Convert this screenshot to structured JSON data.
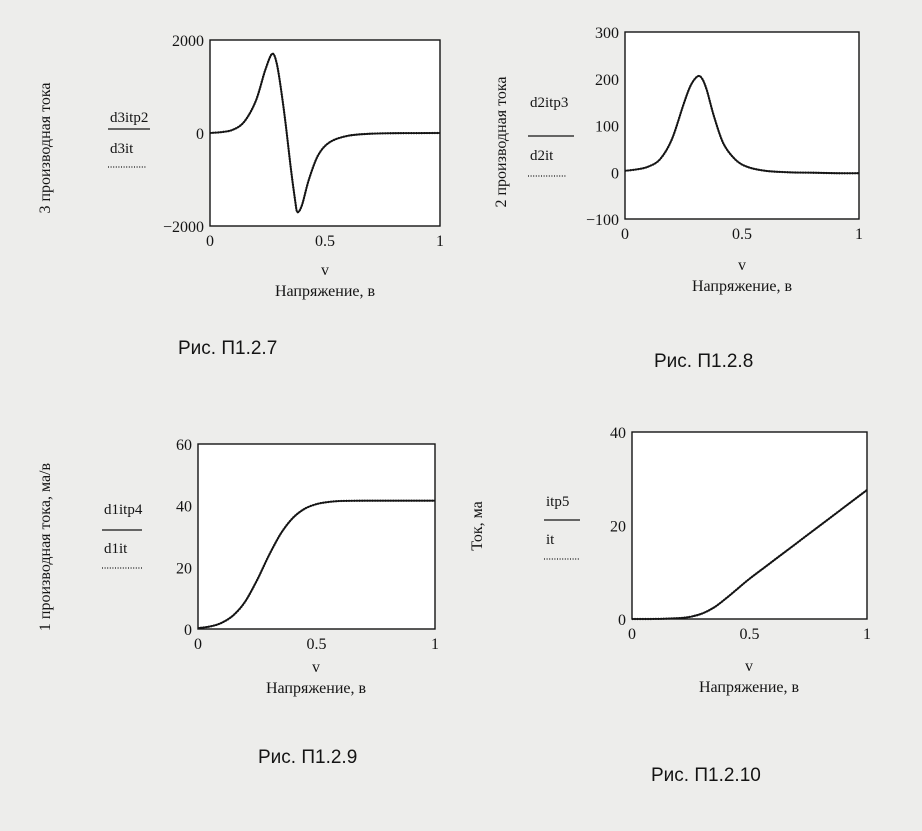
{
  "chart_data": [
    {
      "type": "line",
      "ylabel": "3 производная тока",
      "xlabel": "Напряжение, в",
      "xvar": "v",
      "xlim": [
        0,
        1
      ],
      "ylim": [
        -2000,
        2000
      ],
      "xticks": [
        "0",
        "0.5",
        "1"
      ],
      "yticks": [
        "2000",
        "0",
        "−2000"
      ],
      "yticks_values": [
        2000,
        0,
        -2000
      ],
      "xticks_values": [
        0,
        0.5,
        1
      ],
      "series": [
        {
          "name": "d3itp2",
          "style": "solid",
          "x": [
            0,
            0.05,
            0.1,
            0.15,
            0.2,
            0.24,
            0.27,
            0.29,
            0.31,
            0.33,
            0.35,
            0.37,
            0.38,
            0.4,
            0.43,
            0.47,
            0.52,
            0.6,
            0.7,
            0.8,
            0.9,
            1.0
          ],
          "y": [
            0,
            20,
            70,
            250,
            700,
            1350,
            1700,
            1500,
            900,
            150,
            -700,
            -1450,
            -1700,
            -1550,
            -1000,
            -480,
            -200,
            -60,
            -15,
            -5,
            -2,
            0
          ]
        },
        {
          "name": "d3it",
          "style": "dotted",
          "x": [
            0,
            0.05,
            0.1,
            0.15,
            0.2,
            0.24,
            0.27,
            0.29,
            0.31,
            0.33,
            0.35,
            0.37,
            0.38,
            0.4,
            0.43,
            0.47,
            0.52,
            0.6,
            0.7,
            0.8,
            0.9,
            1.0
          ],
          "y": [
            0,
            20,
            70,
            250,
            700,
            1350,
            1700,
            1500,
            900,
            150,
            -700,
            -1450,
            -1700,
            -1550,
            -1000,
            -480,
            -200,
            -60,
            -15,
            -5,
            -2,
            0
          ]
        }
      ],
      "caption": "Рис. П1.2.7"
    },
    {
      "type": "line",
      "ylabel": "2 производная тока",
      "xlabel": "Напряжение, в",
      "xvar": "v",
      "xlim": [
        0,
        1
      ],
      "ylim": [
        -100,
        300
      ],
      "xticks": [
        "0",
        "0.5",
        "1"
      ],
      "yticks": [
        "300",
        "200",
        "100",
        "0",
        "−100"
      ],
      "yticks_values": [
        300,
        200,
        100,
        0,
        -100
      ],
      "xticks_values": [
        0,
        0.5,
        1
      ],
      "series": [
        {
          "name": "d2itp3",
          "style": "solid",
          "x": [
            0,
            0.05,
            0.1,
            0.15,
            0.2,
            0.25,
            0.28,
            0.31,
            0.33,
            0.35,
            0.38,
            0.42,
            0.47,
            0.52,
            0.6,
            0.7,
            0.8,
            0.9,
            1.0
          ],
          "y": [
            3,
            6,
            12,
            28,
            70,
            145,
            185,
            205,
            200,
            175,
            120,
            62,
            28,
            12,
            3,
            0,
            -1,
            -2,
            -2
          ]
        },
        {
          "name": "d2it",
          "style": "dotted",
          "x": [
            0,
            0.05,
            0.1,
            0.15,
            0.2,
            0.25,
            0.28,
            0.31,
            0.33,
            0.35,
            0.38,
            0.42,
            0.47,
            0.52,
            0.6,
            0.7,
            0.8,
            0.9,
            1.0
          ],
          "y": [
            3,
            6,
            12,
            28,
            70,
            145,
            185,
            205,
            200,
            175,
            120,
            62,
            28,
            12,
            3,
            0,
            -1,
            -2,
            -2
          ]
        }
      ],
      "caption": "Рис. П1.2.8"
    },
    {
      "type": "line",
      "ylabel": "1 производная тока, ма/в",
      "xlabel": "Напряжение, в",
      "xvar": "v",
      "xlim": [
        0,
        1
      ],
      "ylim": [
        0,
        60
      ],
      "xticks": [
        "0",
        "0.5",
        "1"
      ],
      "yticks": [
        "60",
        "40",
        "20",
        "0"
      ],
      "yticks_values": [
        60,
        40,
        20,
        0
      ],
      "xticks_values": [
        0,
        0.5,
        1
      ],
      "series": [
        {
          "name": "d1itp4",
          "style": "solid",
          "x": [
            0,
            0.05,
            0.1,
            0.15,
            0.2,
            0.25,
            0.3,
            0.35,
            0.4,
            0.45,
            0.5,
            0.55,
            0.6,
            0.7,
            0.8,
            0.9,
            1.0
          ],
          "y": [
            0.3,
            0.8,
            2,
            4.5,
            9,
            16,
            24,
            31,
            36,
            39,
            40.5,
            41.2,
            41.5,
            41.6,
            41.6,
            41.6,
            41.6
          ]
        },
        {
          "name": "d1it",
          "style": "dotted",
          "x": [
            0,
            0.05,
            0.1,
            0.15,
            0.2,
            0.25,
            0.3,
            0.35,
            0.4,
            0.45,
            0.5,
            0.55,
            0.6,
            0.7,
            0.8,
            0.9,
            1.0
          ],
          "y": [
            0.3,
            0.8,
            2,
            4.5,
            9,
            16,
            24,
            31,
            36,
            39,
            40.5,
            41.2,
            41.5,
            41.6,
            41.6,
            41.6,
            41.6
          ]
        }
      ],
      "caption": "Рис. П1.2.9"
    },
    {
      "type": "line",
      "ylabel": "Ток, ма",
      "xlabel": "Напряжение, в",
      "xvar": "v",
      "xlim": [
        0,
        1
      ],
      "ylim": [
        0,
        40
      ],
      "xticks": [
        "0",
        "0.5",
        "1"
      ],
      "yticks": [
        "40",
        "20",
        "0"
      ],
      "yticks_values": [
        40,
        20,
        0
      ],
      "xticks_values": [
        0,
        0.5,
        1
      ],
      "series": [
        {
          "name": "itp5",
          "style": "solid",
          "x": [
            0,
            0.1,
            0.2,
            0.25,
            0.3,
            0.35,
            0.4,
            0.45,
            0.5,
            0.6,
            0.7,
            0.8,
            0.9,
            1.0
          ],
          "y": [
            0,
            0.02,
            0.2,
            0.5,
            1.2,
            2.5,
            4.4,
            6.5,
            8.6,
            12.4,
            16.2,
            20.0,
            23.8,
            27.6
          ]
        },
        {
          "name": "it",
          "style": "dotted",
          "x": [
            0,
            0.1,
            0.2,
            0.25,
            0.3,
            0.35,
            0.4,
            0.45,
            0.5,
            0.6,
            0.7,
            0.8,
            0.9,
            1.0
          ],
          "y": [
            0,
            0.02,
            0.2,
            0.5,
            1.2,
            2.5,
            4.4,
            6.5,
            8.6,
            12.4,
            16.2,
            20.0,
            23.8,
            27.6
          ]
        }
      ],
      "caption": "Рис. П1.2.10"
    }
  ]
}
